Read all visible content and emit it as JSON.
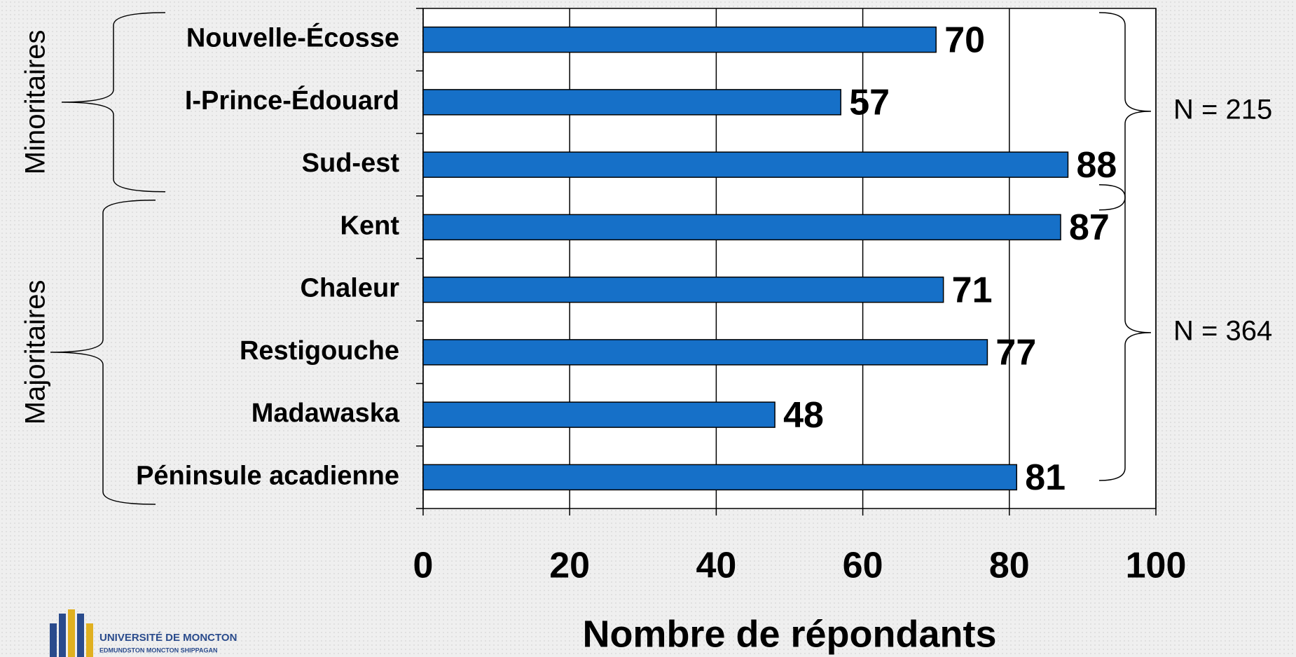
{
  "chart_data": {
    "type": "bar",
    "orientation": "horizontal",
    "x_label": "Nombre de répondants",
    "categories": [
      "Nouvelle-Écosse",
      "I-Prince-Édouard",
      "Sud-est",
      "Kent",
      "Chaleur",
      "Restigouche",
      "Madawaska",
      "Péninsule acadienne"
    ],
    "values": [
      70,
      57,
      88,
      87,
      71,
      77,
      48,
      81
    ],
    "color": "#1670c8",
    "xlim": [
      0,
      100
    ],
    "xticks": [
      0,
      20,
      40,
      60,
      80,
      100
    ],
    "grid": true,
    "groups": [
      {
        "label": "Minoritaires",
        "n_label": "N = 215",
        "from": 0,
        "to": 2
      },
      {
        "label": "Majoritaires",
        "n_label": "N = 364",
        "from": 3,
        "to": 7
      }
    ]
  },
  "logo": {
    "title": "UNIVERSITÉ DE MONCTON",
    "subtitle": "EDMUNDSTON MONCTON SHIPPAGAN"
  }
}
